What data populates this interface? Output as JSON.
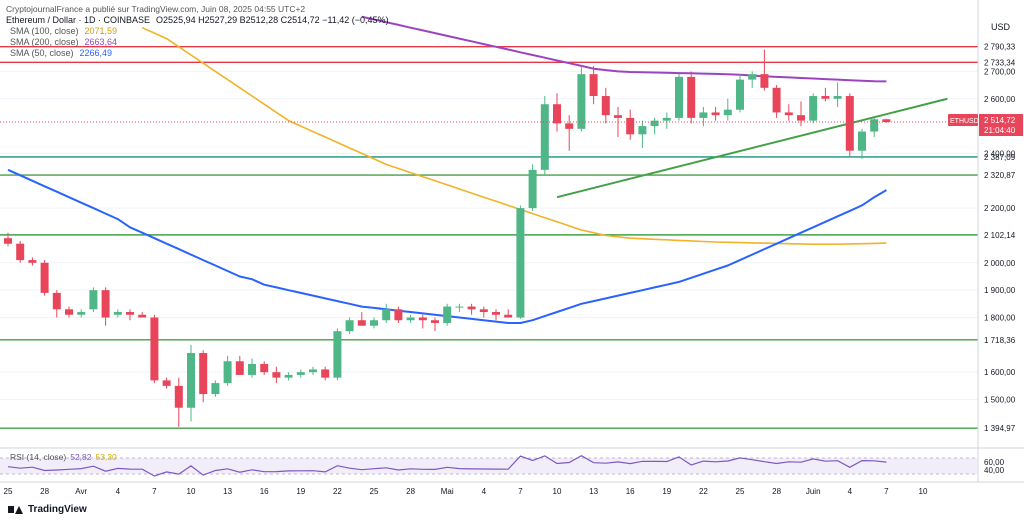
{
  "header": {
    "published_by": "CryptojournalFrance a publié sur TradingView.com, Juin 08, 2025 04:55 UTC+2",
    "symbol_line": "Ethereum / Dollar · 1D · COINBASE",
    "ohlc": "O2525,94  H2527,29  B2512,28  C2514,72  −11,42 (−0,45%)",
    "sma100": {
      "label": "SMA (100, close)",
      "value": "2071,59",
      "color": "#f2b22a"
    },
    "sma200": {
      "label": "SMA (200, close)",
      "value": "2663,64",
      "color": "#9c44c0"
    },
    "sma50": {
      "label": "SMA (50, close)",
      "value": "2266,49",
      "color": "#2962ff"
    }
  },
  "rsi": {
    "label": "RSI (14, close)",
    "value": "52,82",
    "value2": "53,30",
    "ticks": [
      "60,00",
      "40,00"
    ]
  },
  "currency_label": "USD",
  "price_tag": {
    "symbol": "ETHUSD",
    "price": "2 514,72",
    "countdown": "21:04:40"
  },
  "watermark": "TradingView",
  "colors": {
    "up": "#4fb687",
    "down": "#e8455a",
    "level_red": "#e53946",
    "level_green": "#43a047",
    "level_teal": "#16907e"
  },
  "chart_data": {
    "type": "candlestick",
    "ylim": [
      1330,
      2910
    ],
    "y_ticks": [
      "2 700,00",
      "2 600,00",
      "2 400,00",
      "2 200,00",
      "2 000,00",
      "1 900,00",
      "1 800,00",
      "1 600,00",
      "1 500,00"
    ],
    "x_ticks": [
      "25",
      "28",
      "Avr",
      "4",
      "7",
      "10",
      "13",
      "16",
      "19",
      "22",
      "25",
      "28",
      "Mai",
      "4",
      "7",
      "10",
      "13",
      "16",
      "19",
      "22",
      "25",
      "28",
      "Juin",
      "4",
      "7",
      "10"
    ],
    "levels": [
      {
        "price": 2790.33,
        "label": "2 790,33",
        "color": "#e53946"
      },
      {
        "price": 2733.34,
        "label": "2 733,34",
        "color": "#e53946"
      },
      {
        "price": 2387.09,
        "label": "2 387,09",
        "color": "#16907e"
      },
      {
        "price": 2320.87,
        "label": "2 320,87",
        "color": "#43a047"
      },
      {
        "price": 2102.14,
        "label": "2 102,14",
        "color": "#43a047"
      },
      {
        "price": 1718.36,
        "label": "1 718,36",
        "color": "#43a047"
      },
      {
        "price": 1394.97,
        "label": "1 394,97",
        "color": "#43a047"
      }
    ],
    "trendline": {
      "from": [
        "Mai 8",
        2240
      ],
      "to": [
        "Juin 10",
        2600
      ]
    },
    "candles": [
      {
        "o": 2090,
        "h": 2110,
        "l": 2060,
        "c": 2070
      },
      {
        "o": 2070,
        "h": 2080,
        "l": 2000,
        "c": 2010
      },
      {
        "o": 2010,
        "h": 2020,
        "l": 1990,
        "c": 2000
      },
      {
        "o": 2000,
        "h": 2010,
        "l": 1880,
        "c": 1890
      },
      {
        "o": 1890,
        "h": 1900,
        "l": 1800,
        "c": 1830
      },
      {
        "o": 1830,
        "h": 1840,
        "l": 1800,
        "c": 1810
      },
      {
        "o": 1810,
        "h": 1830,
        "l": 1800,
        "c": 1820
      },
      {
        "o": 1830,
        "h": 1910,
        "l": 1820,
        "c": 1900
      },
      {
        "o": 1900,
        "h": 1910,
        "l": 1770,
        "c": 1800
      },
      {
        "o": 1810,
        "h": 1830,
        "l": 1800,
        "c": 1820
      },
      {
        "o": 1820,
        "h": 1830,
        "l": 1790,
        "c": 1810
      },
      {
        "o": 1810,
        "h": 1820,
        "l": 1800,
        "c": 1800
      },
      {
        "o": 1800,
        "h": 1810,
        "l": 1560,
        "c": 1570
      },
      {
        "o": 1570,
        "h": 1580,
        "l": 1540,
        "c": 1550
      },
      {
        "o": 1550,
        "h": 1580,
        "l": 1400,
        "c": 1470
      },
      {
        "o": 1470,
        "h": 1700,
        "l": 1420,
        "c": 1670
      },
      {
        "o": 1670,
        "h": 1680,
        "l": 1490,
        "c": 1520
      },
      {
        "o": 1520,
        "h": 1570,
        "l": 1510,
        "c": 1560
      },
      {
        "o": 1560,
        "h": 1660,
        "l": 1550,
        "c": 1640
      },
      {
        "o": 1640,
        "h": 1660,
        "l": 1590,
        "c": 1590
      },
      {
        "o": 1590,
        "h": 1650,
        "l": 1580,
        "c": 1630
      },
      {
        "o": 1630,
        "h": 1640,
        "l": 1590,
        "c": 1600
      },
      {
        "o": 1600,
        "h": 1620,
        "l": 1560,
        "c": 1580
      },
      {
        "o": 1580,
        "h": 1600,
        "l": 1570,
        "c": 1590
      },
      {
        "o": 1590,
        "h": 1610,
        "l": 1580,
        "c": 1600
      },
      {
        "o": 1600,
        "h": 1620,
        "l": 1590,
        "c": 1610
      },
      {
        "o": 1610,
        "h": 1620,
        "l": 1570,
        "c": 1580
      },
      {
        "o": 1580,
        "h": 1760,
        "l": 1570,
        "c": 1750
      },
      {
        "o": 1750,
        "h": 1800,
        "l": 1740,
        "c": 1790
      },
      {
        "o": 1790,
        "h": 1820,
        "l": 1770,
        "c": 1770
      },
      {
        "o": 1770,
        "h": 1800,
        "l": 1760,
        "c": 1790
      },
      {
        "o": 1790,
        "h": 1850,
        "l": 1780,
        "c": 1830
      },
      {
        "o": 1830,
        "h": 1840,
        "l": 1780,
        "c": 1790
      },
      {
        "o": 1790,
        "h": 1810,
        "l": 1780,
        "c": 1800
      },
      {
        "o": 1800,
        "h": 1810,
        "l": 1760,
        "c": 1790
      },
      {
        "o": 1790,
        "h": 1800,
        "l": 1750,
        "c": 1780
      },
      {
        "o": 1780,
        "h": 1850,
        "l": 1770,
        "c": 1840
      },
      {
        "o": 1840,
        "h": 1850,
        "l": 1820,
        "c": 1840
      },
      {
        "o": 1840,
        "h": 1850,
        "l": 1810,
        "c": 1830
      },
      {
        "o": 1830,
        "h": 1840,
        "l": 1800,
        "c": 1820
      },
      {
        "o": 1820,
        "h": 1830,
        "l": 1790,
        "c": 1810
      },
      {
        "o": 1810,
        "h": 1830,
        "l": 1800,
        "c": 1800
      },
      {
        "o": 1800,
        "h": 2210,
        "l": 1795,
        "c": 2200
      },
      {
        "o": 2200,
        "h": 2360,
        "l": 2190,
        "c": 2340
      },
      {
        "o": 2340,
        "h": 2610,
        "l": 2320,
        "c": 2580
      },
      {
        "o": 2580,
        "h": 2620,
        "l": 2480,
        "c": 2510
      },
      {
        "o": 2510,
        "h": 2540,
        "l": 2410,
        "c": 2490
      },
      {
        "o": 2490,
        "h": 2720,
        "l": 2480,
        "c": 2690
      },
      {
        "o": 2690,
        "h": 2720,
        "l": 2580,
        "c": 2610
      },
      {
        "o": 2610,
        "h": 2640,
        "l": 2510,
        "c": 2540
      },
      {
        "o": 2540,
        "h": 2570,
        "l": 2460,
        "c": 2530
      },
      {
        "o": 2530,
        "h": 2560,
        "l": 2450,
        "c": 2470
      },
      {
        "o": 2470,
        "h": 2520,
        "l": 2420,
        "c": 2500
      },
      {
        "o": 2500,
        "h": 2530,
        "l": 2470,
        "c": 2520
      },
      {
        "o": 2520,
        "h": 2550,
        "l": 2490,
        "c": 2530
      },
      {
        "o": 2530,
        "h": 2690,
        "l": 2520,
        "c": 2680
      },
      {
        "o": 2680,
        "h": 2700,
        "l": 2510,
        "c": 2530
      },
      {
        "o": 2530,
        "h": 2570,
        "l": 2500,
        "c": 2550
      },
      {
        "o": 2550,
        "h": 2570,
        "l": 2520,
        "c": 2540
      },
      {
        "o": 2540,
        "h": 2600,
        "l": 2520,
        "c": 2560
      },
      {
        "o": 2560,
        "h": 2690,
        "l": 2550,
        "c": 2670
      },
      {
        "o": 2670,
        "h": 2700,
        "l": 2640,
        "c": 2690
      },
      {
        "o": 2690,
        "h": 2780,
        "l": 2630,
        "c": 2640
      },
      {
        "o": 2640,
        "h": 2650,
        "l": 2530,
        "c": 2550
      },
      {
        "o": 2550,
        "h": 2580,
        "l": 2520,
        "c": 2540
      },
      {
        "o": 2540,
        "h": 2590,
        "l": 2500,
        "c": 2520
      },
      {
        "o": 2520,
        "h": 2620,
        "l": 2510,
        "c": 2610
      },
      {
        "o": 2610,
        "h": 2640,
        "l": 2590,
        "c": 2600
      },
      {
        "o": 2600,
        "h": 2660,
        "l": 2570,
        "c": 2610
      },
      {
        "o": 2610,
        "h": 2620,
        "l": 2390,
        "c": 2410
      },
      {
        "o": 2410,
        "h": 2490,
        "l": 2380,
        "c": 2480
      },
      {
        "o": 2480,
        "h": 2530,
        "l": 2460,
        "c": 2525
      },
      {
        "o": 2525,
        "h": 2527,
        "l": 2512,
        "c": 2515
      }
    ],
    "sma50": [
      2340,
      2320,
      2300,
      2280,
      2260,
      2240,
      2220,
      2200,
      2180,
      2160,
      2130,
      2110,
      2090,
      2070,
      2050,
      2030,
      2010,
      1990,
      1970,
      1950,
      1940,
      1920,
      1910,
      1900,
      1890,
      1880,
      1870,
      1860,
      1850,
      1840,
      1835,
      1830,
      1825,
      1820,
      1815,
      1810,
      1805,
      1800,
      1795,
      1790,
      1785,
      1780,
      1780,
      1790,
      1805,
      1820,
      1835,
      1850,
      1860,
      1870,
      1880,
      1890,
      1900,
      1910,
      1920,
      1930,
      1945,
      1960,
      1975,
      1990,
      2010,
      2030,
      2050,
      2070,
      2090,
      2110,
      2130,
      2150,
      2170,
      2190,
      2210,
      2240,
      2266
    ],
    "sma100": [
      2860,
      2840,
      2820,
      2790,
      2760,
      2730,
      2700,
      2670,
      2640,
      2610,
      2580,
      2550,
      2520,
      2500,
      2480,
      2460,
      2440,
      2420,
      2400,
      2380,
      2360,
      2345,
      2330,
      2315,
      2300,
      2285,
      2270,
      2255,
      2240,
      2225,
      2210,
      2195,
      2180,
      2165,
      2150,
      2135,
      2120,
      2110,
      2100,
      2095,
      2090,
      2088,
      2086,
      2084,
      2082,
      2080,
      2078,
      2076,
      2075,
      2074,
      2073,
      2072,
      2071,
      2070,
      2069,
      2068,
      2068,
      2068,
      2069,
      2070,
      2071,
      2072
    ],
    "sma200": [
      2900,
      2890,
      2880,
      2870,
      2860,
      2850,
      2840,
      2830,
      2820,
      2810,
      2800,
      2790,
      2780,
      2770,
      2760,
      2750,
      2740,
      2730,
      2720,
      2710,
      2705,
      2700,
      2698,
      2697,
      2696,
      2695,
      2694,
      2693,
      2692,
      2691,
      2690,
      2688,
      2685,
      2682,
      2680,
      2678,
      2676,
      2674,
      2672,
      2670,
      2668,
      2666,
      2664,
      2663.64
    ]
  }
}
